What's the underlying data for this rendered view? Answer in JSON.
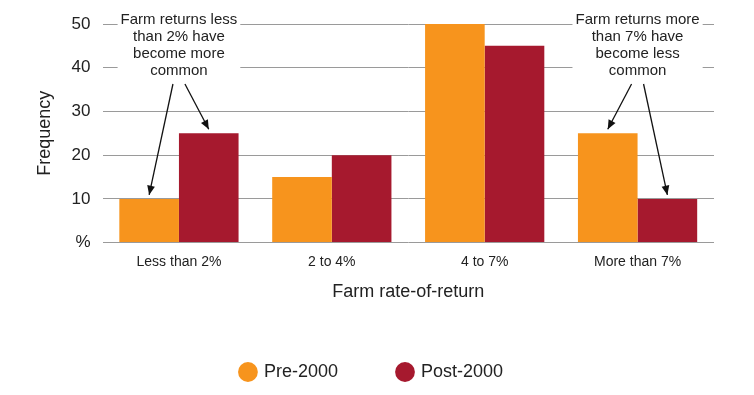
{
  "chart_data": {
    "type": "bar",
    "x_label": "Farm rate-of-return",
    "y_label": "Frequency",
    "categories": [
      "Less than 2%",
      "2 to 4%",
      "4 to 7%",
      "More than 7%"
    ],
    "series": [
      {
        "name": "Pre-2000",
        "color": "#f7941d",
        "values": [
          10,
          15,
          50,
          25
        ]
      },
      {
        "name": "Post-2000",
        "color": "#a6192e",
        "values": [
          25,
          20,
          45,
          10
        ]
      }
    ],
    "ylim": [
      0,
      50
    ],
    "yticks": [
      {
        "value": 0,
        "label": "%"
      },
      10,
      20,
      30,
      40,
      50
    ],
    "grid": true,
    "legend": "bottom",
    "annotations": [
      {
        "text": "Farm returns less than 2% have become more common",
        "x": "Less than 2%"
      },
      {
        "text": "Farm returns more than 7% have become less common",
        "x": "More than 7%"
      }
    ]
  }
}
